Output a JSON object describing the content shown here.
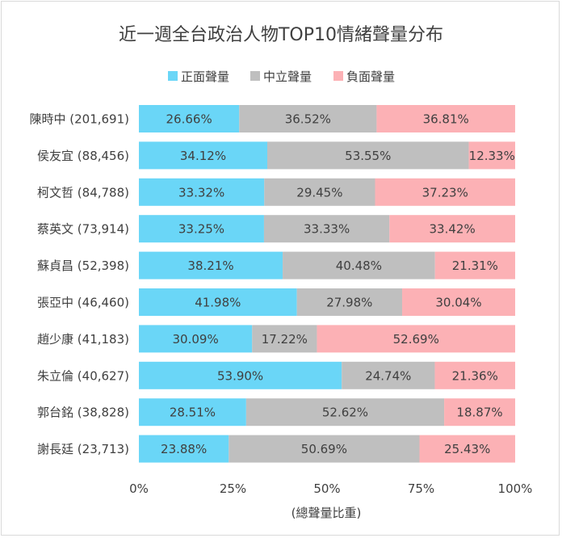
{
  "chart_data": {
    "type": "bar",
    "orientation": "horizontal",
    "stacked": "percent",
    "title": "近一週全台政治人物TOP10情緒聲量分布",
    "xlabel": "(總聲量比重)",
    "ylabel": "",
    "xlim": [
      0,
      100
    ],
    "xticks": [
      "0%",
      "25%",
      "50%",
      "75%",
      "100%"
    ],
    "grid": false,
    "legend": "top",
    "categories": [
      "陳時中 (201,691)",
      "侯友宜 (88,456)",
      "柯文哲 (84,788)",
      "蔡英文 (73,914)",
      "蘇貞昌 (52,398)",
      "張亞中 (46,460)",
      "趙少康 (41,183)",
      "朱立倫 (40,627)",
      "郭台銘 (38,828)",
      "謝長廷 (23,713)"
    ],
    "series": [
      {
        "name": "正面聲量",
        "color": "#6ad6f7",
        "values": [
          26.66,
          34.12,
          33.32,
          33.25,
          38.21,
          41.98,
          30.09,
          53.9,
          28.51,
          23.88
        ],
        "labels": [
          "26.66%",
          "34.12%",
          "33.32%",
          "33.25%",
          "38.21%",
          "41.98%",
          "30.09%",
          "53.90%",
          "28.51%",
          "23.88%"
        ]
      },
      {
        "name": "中立聲量",
        "color": "#bfbfbf",
        "values": [
          36.52,
          53.55,
          29.45,
          33.33,
          40.48,
          27.98,
          17.22,
          24.74,
          52.62,
          50.69
        ],
        "labels": [
          "36.52%",
          "53.55%",
          "29.45%",
          "33.33%",
          "40.48%",
          "27.98%",
          "17.22%",
          "24.74%",
          "52.62%",
          "50.69%"
        ]
      },
      {
        "name": "負面聲量",
        "color": "#fcb1b5",
        "values": [
          36.81,
          12.33,
          37.23,
          33.42,
          21.31,
          30.04,
          52.69,
          21.36,
          18.87,
          25.43
        ],
        "labels": [
          "36.81%",
          "12.33%",
          "37.23%",
          "33.42%",
          "21.31%",
          "30.04%",
          "52.69%",
          "21.36%",
          "18.87%",
          "25.43%"
        ]
      }
    ]
  }
}
